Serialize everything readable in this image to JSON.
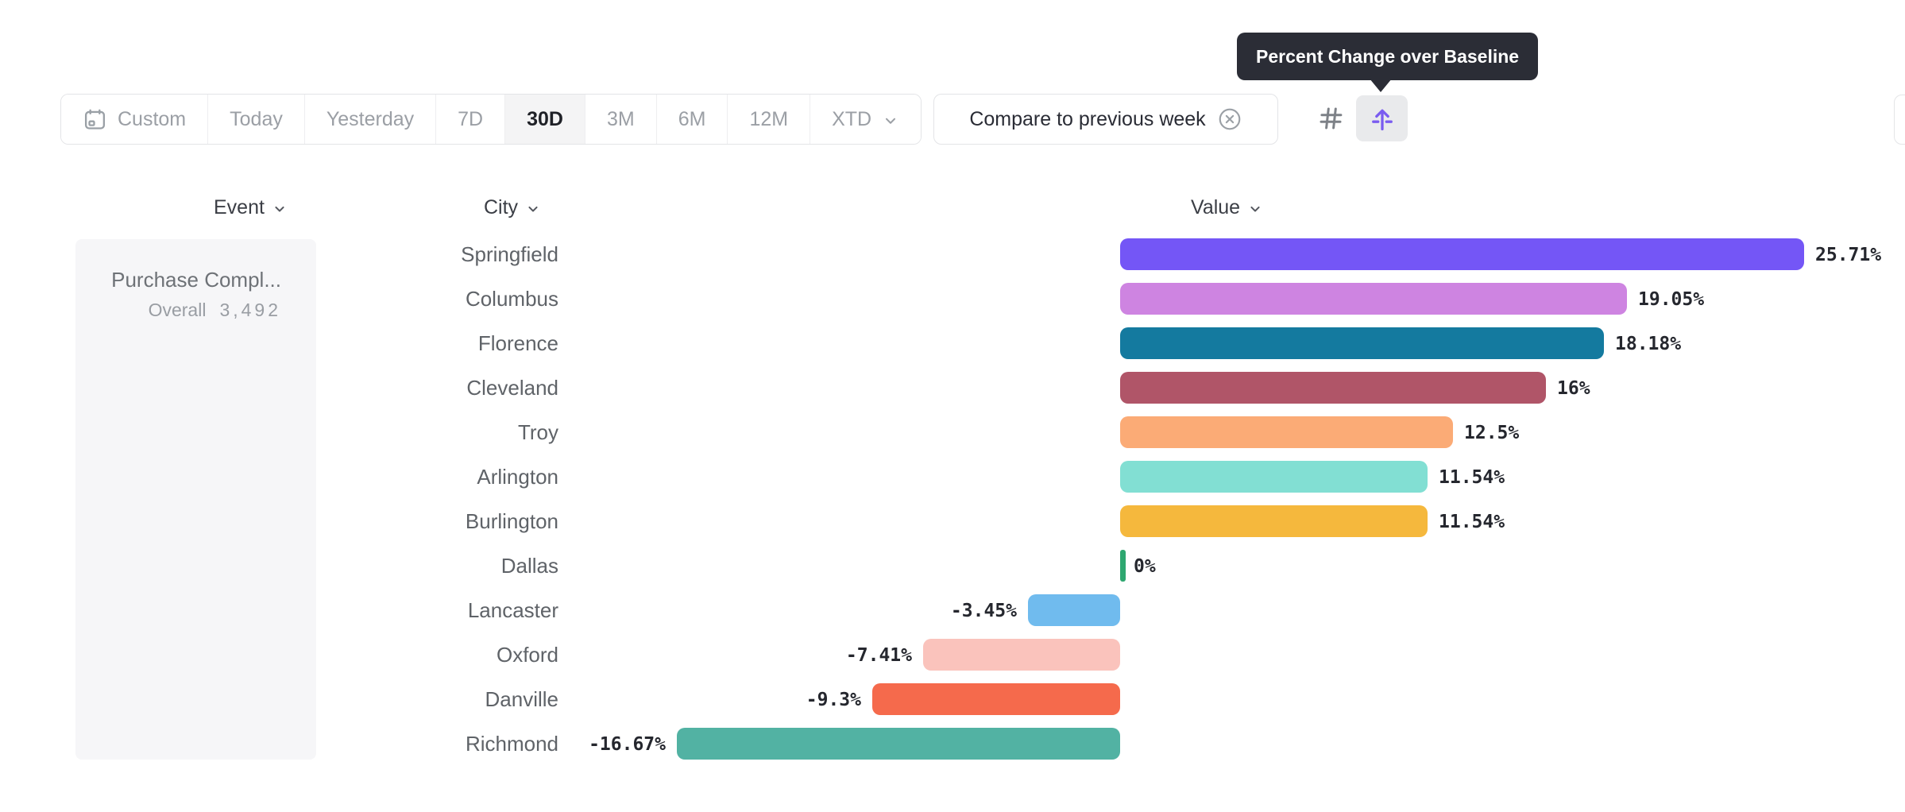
{
  "toolbar": {
    "segments": [
      {
        "label": "Custom",
        "icon": "calendar",
        "selected": false
      },
      {
        "label": "Today",
        "selected": false
      },
      {
        "label": "Yesterday",
        "selected": false
      },
      {
        "label": "7D",
        "selected": false
      },
      {
        "label": "30D",
        "selected": true
      },
      {
        "label": "3M",
        "selected": false
      },
      {
        "label": "6M",
        "selected": false
      },
      {
        "label": "12M",
        "selected": false
      },
      {
        "label": "XTD",
        "selected": false,
        "has_chevron": true
      }
    ],
    "compare_button": {
      "label": "Compare to previous week",
      "icon": "x-circle"
    },
    "view_toggles": [
      {
        "name": "matrix-view",
        "icon": "hash",
        "selected": false
      },
      {
        "name": "percent-change-baseline-view",
        "icon": "baseline-arrow",
        "selected": true,
        "accent": "#7a5cf0"
      }
    ]
  },
  "tooltip": {
    "text": "Percent Change over Baseline",
    "bg": "#2b2d36"
  },
  "columns": {
    "event": "Event",
    "city": "City",
    "value": "Value"
  },
  "event_panel": {
    "title": "Purchase Compl...",
    "overall_label": "Overall",
    "overall_value": "3,492"
  },
  "chart_data": {
    "type": "bar",
    "orientation": "horizontal",
    "title": "Percent Change over Baseline",
    "unit": "%",
    "grid": false,
    "xlim": [
      -16.67,
      25.71
    ],
    "categories": [
      "Springfield",
      "Columbus",
      "Florence",
      "Cleveland",
      "Troy",
      "Arlington",
      "Burlington",
      "Dallas",
      "Lancaster",
      "Oxford",
      "Danville",
      "Richmond"
    ],
    "values": [
      25.71,
      19.05,
      18.18,
      16,
      12.5,
      11.54,
      11.54,
      0,
      -3.45,
      -7.41,
      -9.3,
      -16.67
    ],
    "value_labels": [
      "25.71%",
      "19.05%",
      "18.18%",
      "16%",
      "12.5%",
      "11.54%",
      "11.54%",
      "0%",
      "-3.45%",
      "-7.41%",
      "-9.3%",
      "-16.67%"
    ],
    "colors": [
      "#7456F6",
      "#CE84E1",
      "#147A9F",
      "#B05568",
      "#FBAB76",
      "#82DFD3",
      "#F5B83D",
      "#2EA770",
      "#70BBEE",
      "#FAC3BC",
      "#F56A4C",
      "#52B2A3"
    ]
  }
}
